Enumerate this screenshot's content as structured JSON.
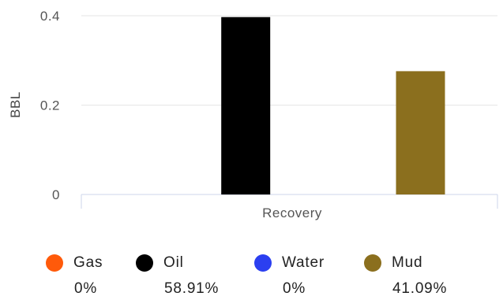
{
  "chart_data": {
    "type": "bar",
    "categories": [
      "Recovery"
    ],
    "xlabel": "Recovery",
    "ylabel": "BBL",
    "ylim": [
      0,
      0.4
    ],
    "yticks": [
      0,
      0.2,
      0.4
    ],
    "ytick_labels": [
      "0",
      "0.2",
      "0.4"
    ],
    "grid": true,
    "legend_position": "bottom",
    "series": [
      {
        "name": "Gas",
        "values": [
          0
        ],
        "color": "#ff5a0a",
        "percent": "0%"
      },
      {
        "name": "Oil",
        "values": [
          0.397
        ],
        "color": "#000000",
        "percent": "58.91%"
      },
      {
        "name": "Water",
        "values": [
          0
        ],
        "color": "#2b3ff0",
        "percent": "0%"
      },
      {
        "name": "Mud",
        "values": [
          0.276
        ],
        "color": "#8b6f1e",
        "percent": "41.09%"
      }
    ]
  }
}
